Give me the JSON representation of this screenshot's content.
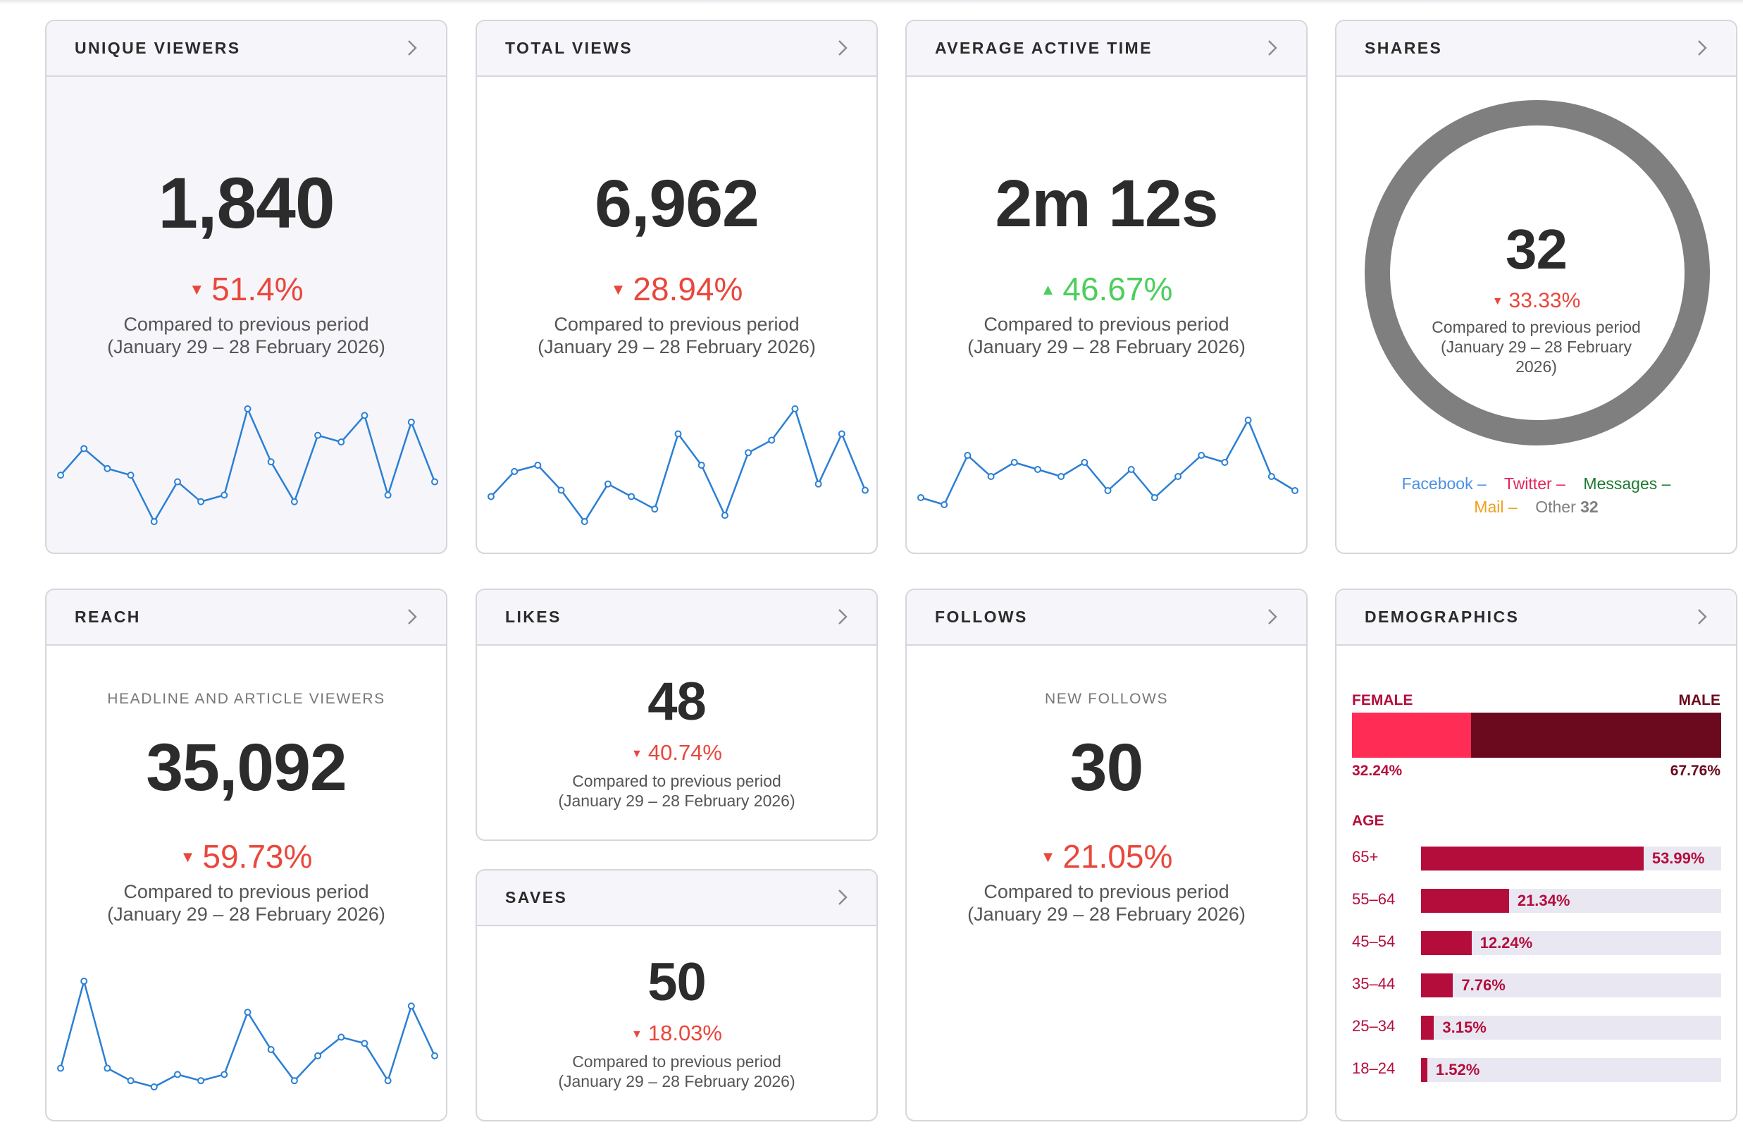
{
  "cards": {
    "unique_viewers": {
      "title": "UNIQUE VIEWERS",
      "value": "1,840",
      "change": "51.4%",
      "direction": "down",
      "compare_line1": "Compared to previous period",
      "compare_line2": "(January 29 – 28 February 2026)",
      "spark": [
        10,
        6,
        9,
        10,
        17,
        11,
        14,
        13,
        0,
        8,
        14,
        4,
        5,
        1,
        13,
        2,
        11
      ]
    },
    "total_views": {
      "title": "TOTAL VIEWS",
      "value": "6,962",
      "change": "28.94%",
      "direction": "down",
      "compare_line1": "Compared to previous period",
      "compare_line2": "(January 29 – 28 February 2026)",
      "spark": [
        14,
        10,
        9,
        13,
        18,
        12,
        14,
        16,
        4,
        9,
        17,
        7,
        5,
        0,
        12,
        4,
        13
      ]
    },
    "average_active_time": {
      "title": "AVERAGE ACTIVE TIME",
      "value": "2m 12s",
      "change": "46.67%",
      "direction": "up",
      "compare_line1": "Compared to previous period",
      "compare_line2": "(January 29 – 28 February 2026)",
      "spark": [
        11,
        12,
        5,
        8,
        6,
        7,
        8,
        6,
        10,
        7,
        11,
        8,
        5,
        6,
        0,
        8,
        10
      ]
    },
    "shares": {
      "title": "SHARES",
      "value": "32",
      "change": "33.33%",
      "direction": "down",
      "compare_line1": "Compared to previous period",
      "compare_line2": "(January 29 – 28 February",
      "compare_line3": "2026)",
      "legend": {
        "facebook": "Facebook –",
        "twitter": "Twitter –",
        "messages": "Messages –",
        "mail": "Mail –",
        "other_label": "Other",
        "other_value": "32"
      },
      "colors": {
        "facebook": "#4a90e2",
        "twitter": "#e2245a",
        "messages": "#1e7a33",
        "mail": "#f0a020",
        "other": "#7f7f7f"
      }
    },
    "reach": {
      "title": "REACH",
      "subtitle": "HEADLINE AND ARTICLE VIEWERS",
      "value": "35,092",
      "change": "59.73%",
      "direction": "down",
      "compare_line1": "Compared to previous period",
      "compare_line2": "(January 29 – 28 February 2026)",
      "spark": [
        14,
        0,
        14,
        16,
        17,
        15,
        16,
        15,
        5,
        11,
        16,
        12,
        9,
        10,
        16,
        4,
        12
      ]
    },
    "likes": {
      "title": "LIKES",
      "value": "48",
      "change": "40.74%",
      "direction": "down",
      "compare_line1": "Compared to previous period",
      "compare_line2": "(January 29 – 28 February 2026)"
    },
    "saves": {
      "title": "SAVES",
      "value": "50",
      "change": "18.03%",
      "direction": "down",
      "compare_line1": "Compared to previous period",
      "compare_line2": "(January 29 – 28 February 2026)"
    },
    "follows": {
      "title": "FOLLOWS",
      "subtitle": "NEW FOLLOWS",
      "value": "30",
      "change": "21.05%",
      "direction": "down",
      "compare_line1": "Compared to previous period",
      "compare_line2": "(January 29 – 28 February 2026)"
    },
    "demographics": {
      "title": "DEMOGRAPHICS",
      "female_label": "FEMALE",
      "male_label": "MALE",
      "female_pct": "32.24%",
      "male_pct": "67.76%",
      "female_fraction": 0.3224,
      "age_label": "AGE",
      "ages": [
        {
          "label": "65+",
          "pct": "53.99%",
          "fraction": 0.5399
        },
        {
          "label": "55–64",
          "pct": "21.34%",
          "fraction": 0.2134
        },
        {
          "label": "45–54",
          "pct": "12.24%",
          "fraction": 0.1224
        },
        {
          "label": "35–44",
          "pct": "7.76%",
          "fraction": 0.0776
        },
        {
          "label": "25–34",
          "pct": "3.15%",
          "fraction": 0.0315
        },
        {
          "label": "18–24",
          "pct": "1.52%",
          "fraction": 0.0152
        }
      ],
      "colors": {
        "female": "#ff2d55",
        "male": "#6b0a1e",
        "age_bar": "#b40d3c",
        "track": "#e9e8f2"
      }
    }
  },
  "icons": {
    "header_action": "chevron-right-icon",
    "down": "triangle-down-icon",
    "up": "triangle-up-icon"
  },
  "colors": {
    "down": "#e9473c",
    "up": "#4cce5c",
    "sparkline": "#2b7fd4"
  }
}
